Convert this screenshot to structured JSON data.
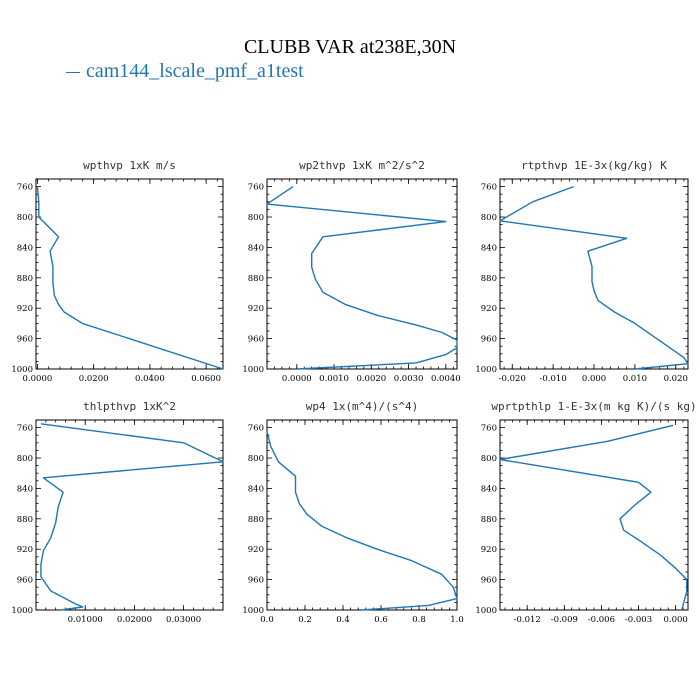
{
  "figure": {
    "title": "CLUBB VAR at238E,30N",
    "legend_label": "cam144_lscale_pmf_a1test",
    "line_color": "#1f77b4"
  },
  "chart_data": [
    {
      "type": "line",
      "title": "wpthvp  1xK m/s",
      "xlim": [
        -0.0005,
        0.066
      ],
      "ylim": [
        1000,
        750
      ],
      "y_inverted": true,
      "xticks": [
        0.0,
        0.02,
        0.04,
        0.06
      ],
      "xtick_labels": [
        "0.0000",
        "0.0200",
        "0.0400",
        "0.0600"
      ],
      "yticks": [
        760,
        800,
        840,
        880,
        920,
        960,
        1000
      ],
      "ytick_labels": [
        "760",
        "800",
        "840",
        "880",
        "920",
        "960",
        "1000"
      ],
      "series": [
        {
          "x": [
            0.0,
            0.0005,
            0.0005,
            0.0075,
            0.0045,
            0.0055,
            0.0055,
            0.006,
            0.0075,
            0.0095,
            0.016,
            0.066
          ],
          "y": [
            760,
            780,
            800,
            826,
            845,
            865,
            886,
            903,
            915,
            925,
            940,
            1000
          ]
        }
      ]
    },
    {
      "type": "line",
      "title": "wp2thvp  1xK m^2/s^2",
      "xlim": [
        -0.0008,
        0.0043
      ],
      "ylim": [
        1000,
        750
      ],
      "y_inverted": true,
      "xticks": [
        0.0,
        0.001,
        0.002,
        0.003,
        0.004
      ],
      "xtick_labels": [
        "0.0000",
        "0.0010",
        "0.0020",
        "0.0030",
        "0.0040"
      ],
      "yticks": [
        760,
        800,
        840,
        880,
        920,
        960,
        1000
      ],
      "ytick_labels": [
        "760",
        "800",
        "840",
        "880",
        "920",
        "960",
        "1000"
      ],
      "series": [
        {
          "x": [
            -0.0001,
            -0.0008,
            0.004,
            0.0007,
            0.0004,
            0.0004,
            0.0005,
            0.0007,
            0.0013,
            0.0022,
            0.0032,
            0.0039,
            0.0043,
            0.0043,
            0.004,
            0.0032,
            0.0
          ],
          "y": [
            760,
            783,
            806,
            826,
            848,
            866,
            882,
            899,
            915,
            930,
            942,
            952,
            962,
            972,
            981,
            992,
            1000
          ]
        }
      ]
    },
    {
      "type": "line",
      "title": "rtpthvp  1E-3x(kg/kg) K",
      "xlim": [
        -0.023,
        0.023
      ],
      "ylim": [
        1000,
        750
      ],
      "y_inverted": true,
      "xticks": [
        -0.02,
        -0.01,
        0.0,
        0.01,
        0.02
      ],
      "xtick_labels": [
        "-0.020",
        "-0.010",
        "0.000",
        "0.010",
        "0.020"
      ],
      "yticks": [
        760,
        800,
        840,
        880,
        920,
        960,
        1000
      ],
      "ytick_labels": [
        "760",
        "800",
        "840",
        "880",
        "920",
        "960",
        "1000"
      ],
      "series": [
        {
          "x": [
            -0.005,
            -0.015,
            -0.023,
            0.008,
            -0.0015,
            -0.0005,
            -0.0005,
            0.0,
            0.001,
            0.005,
            0.01,
            0.014,
            0.018,
            0.022,
            0.023,
            0.01
          ],
          "y": [
            760,
            780,
            805,
            828,
            845,
            865,
            885,
            897,
            910,
            925,
            940,
            955,
            970,
            985,
            993,
            1000
          ]
        }
      ]
    },
    {
      "type": "line",
      "title": "thlpthvp  1xK^2",
      "xlim": [
        0.0,
        0.038
      ],
      "ylim": [
        1000,
        750
      ],
      "y_inverted": true,
      "xticks": [
        0.01,
        0.02,
        0.03
      ],
      "xtick_labels": [
        "0.01000",
        "0.02000",
        "0.03000"
      ],
      "yticks": [
        760,
        800,
        840,
        880,
        920,
        960,
        1000
      ],
      "ytick_labels": [
        "760",
        "800",
        "840",
        "880",
        "920",
        "960",
        "1000"
      ],
      "series": [
        {
          "x": [
            0.001,
            0.03,
            0.038,
            0.0015,
            0.0055,
            0.0045,
            0.004,
            0.003,
            0.0015,
            0.001,
            0.001,
            0.003,
            0.006,
            0.008,
            0.0095,
            0.005
          ],
          "y": [
            755,
            780,
            805,
            826,
            845,
            865,
            885,
            905,
            922,
            940,
            956,
            975,
            985,
            992,
            996,
            1000
          ]
        }
      ]
    },
    {
      "type": "line",
      "title": "wp4  1x(m^4)/(s^4)",
      "xlim": [
        0.0,
        1.0
      ],
      "ylim": [
        1000,
        750
      ],
      "y_inverted": true,
      "xticks": [
        0.0,
        0.2,
        0.4,
        0.6,
        0.8,
        1.0
      ],
      "xtick_labels": [
        "0.0",
        "0.2",
        "0.4",
        "0.6",
        "0.8",
        "1.0"
      ],
      "yticks": [
        760,
        800,
        840,
        880,
        920,
        960,
        1000
      ],
      "ytick_labels": [
        "760",
        "800",
        "840",
        "880",
        "920",
        "960",
        "1000"
      ],
      "series": [
        {
          "x": [
            0.0,
            0.02,
            0.06,
            0.15,
            0.15,
            0.17,
            0.21,
            0.29,
            0.42,
            0.58,
            0.76,
            0.92,
            0.98,
            1.0,
            0.85,
            0.5
          ],
          "y": [
            765,
            785,
            805,
            824,
            845,
            860,
            874,
            890,
            905,
            920,
            935,
            953,
            970,
            985,
            994,
            1000
          ]
        }
      ]
    },
    {
      "type": "line",
      "title": "wprtpthlp  1-E-3x(m kg K)/(s kg)",
      "xlim": [
        -0.0142,
        0.001
      ],
      "ylim": [
        1000,
        750
      ],
      "y_inverted": true,
      "xticks": [
        -0.012,
        -0.009,
        -0.006,
        -0.003,
        0.0
      ],
      "xtick_labels": [
        "-0.012",
        "-0.009",
        "-0.006",
        "-0.003",
        "0.000"
      ],
      "yticks": [
        760,
        800,
        840,
        880,
        920,
        960,
        1000
      ],
      "ytick_labels": [
        "760",
        "800",
        "840",
        "880",
        "920",
        "960",
        "1000"
      ],
      "series": [
        {
          "x": [
            -0.0002,
            -0.0055,
            -0.0142,
            -0.003,
            -0.002,
            -0.0033,
            -0.0045,
            -0.0042,
            -0.0028,
            -0.0012,
            0.0,
            0.0009,
            0.0009,
            0.0005
          ],
          "y": [
            757,
            778,
            802,
            832,
            845,
            862,
            880,
            895,
            910,
            928,
            945,
            960,
            975,
            1000
          ]
        }
      ]
    }
  ]
}
